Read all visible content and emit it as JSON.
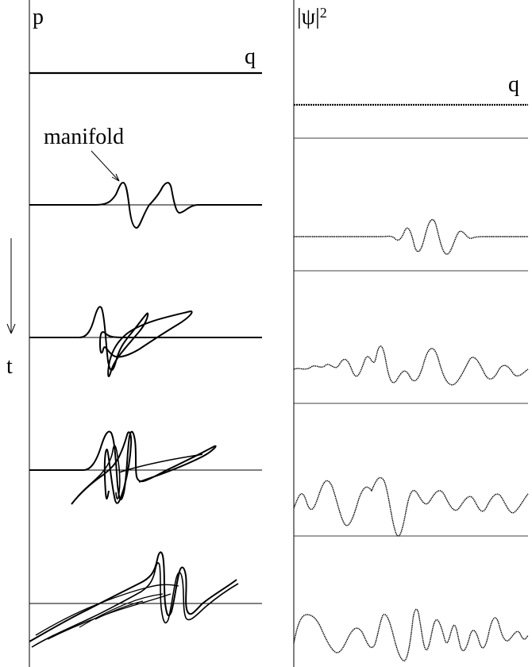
{
  "labels": {
    "left_axis_p": "p",
    "left_axis_q": "q",
    "right_axis_psi": "|ψ|",
    "right_axis_psi_sup": "2",
    "right_axis_q": "q",
    "time_axis": "t",
    "manifold_annotation": "manifold"
  },
  "colors": {
    "ink": "#000000",
    "background": "#ffffff"
  }
}
